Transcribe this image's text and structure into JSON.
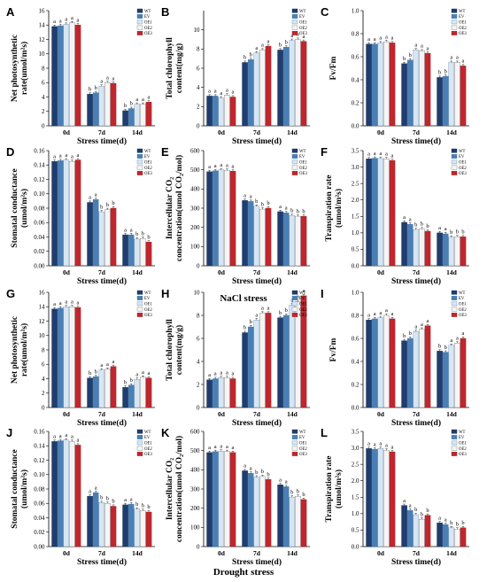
{
  "legend": [
    "WT",
    "EV",
    "OE1",
    "OE2",
    "OE3"
  ],
  "colors": [
    "#1f3d6e",
    "#4a7fb5",
    "#d7e6f2",
    "#f5f5f5",
    "#c0262d"
  ],
  "categories": [
    "0d",
    "7d",
    "14d"
  ],
  "xlabel": "Stress time(d)",
  "section_captions": [
    "NaCl stress",
    "Drought stress"
  ],
  "chart_data": [
    {
      "type": "bar",
      "letter": "A",
      "ylabel": "Net photosynthetic\nrate(umol/m²s)",
      "ylim": [
        0,
        16
      ],
      "ticks": [
        0,
        2,
        4,
        6,
        8,
        10,
        12,
        14,
        16
      ],
      "categories": [
        "0d",
        "7d",
        "14d"
      ],
      "series": [
        {
          "name": "WT",
          "values": [
            13.8,
            4.4,
            2.1
          ]
        },
        {
          "name": "EV",
          "values": [
            13.9,
            4.6,
            2.4
          ]
        },
        {
          "name": "OE1",
          "values": [
            14.1,
            5.5,
            3.0
          ]
        },
        {
          "name": "OE2",
          "values": [
            14.3,
            6.0,
            3.0
          ]
        },
        {
          "name": "OE3",
          "values": [
            14.0,
            5.9,
            3.3
          ]
        }
      ],
      "sig": [
        [
          "a",
          "a",
          "a",
          "a",
          "a"
        ],
        [
          "b",
          "b",
          "a",
          "a",
          "a"
        ],
        [
          "b",
          "b",
          "a",
          "a",
          "a"
        ]
      ]
    },
    {
      "type": "bar",
      "letter": "B",
      "ylabel": "Total chlorophyll\ncontent(mg/g)",
      "ylim": [
        0,
        12
      ],
      "ticks": [
        0,
        2,
        4,
        6,
        8,
        10
      ],
      "categories": [
        "0d",
        "7d",
        "14d"
      ],
      "series": [
        {
          "name": "WT",
          "values": [
            3.1,
            6.6,
            7.9
          ]
        },
        {
          "name": "EV",
          "values": [
            3.1,
            6.9,
            8.2
          ]
        },
        {
          "name": "OE1",
          "values": [
            2.9,
            7.6,
            8.9
          ]
        },
        {
          "name": "OE2",
          "values": [
            3.2,
            7.9,
            9.0
          ]
        },
        {
          "name": "OE3",
          "values": [
            3.0,
            8.3,
            8.8
          ]
        }
      ],
      "sig": [
        [
          "a",
          "a",
          "a",
          "a",
          "a"
        ],
        [
          "b",
          "b",
          "a",
          "a",
          "a"
        ],
        [
          "b",
          "b",
          "a",
          "a",
          "a"
        ]
      ]
    },
    {
      "type": "bar",
      "letter": "C",
      "ylabel": "Fv/Fm",
      "ylim": [
        0,
        1.0
      ],
      "ticks": [
        0.0,
        0.2,
        0.4,
        0.6,
        0.8,
        1.0
      ],
      "categories": [
        "0d",
        "7d",
        "14d"
      ],
      "series": [
        {
          "name": "WT",
          "values": [
            0.71,
            0.54,
            0.42
          ]
        },
        {
          "name": "EV",
          "values": [
            0.71,
            0.57,
            0.43
          ]
        },
        {
          "name": "OE1",
          "values": [
            0.72,
            0.66,
            0.55
          ]
        },
        {
          "name": "OE2",
          "values": [
            0.73,
            0.65,
            0.55
          ]
        },
        {
          "name": "OE3",
          "values": [
            0.72,
            0.63,
            0.52
          ]
        }
      ],
      "sig": [
        [
          "a",
          "a",
          "a",
          "a",
          "a"
        ],
        [
          "b",
          "b",
          "a",
          "a",
          "a"
        ],
        [
          "b",
          "b",
          "a",
          "a",
          "a"
        ]
      ]
    },
    {
      "type": "bar",
      "letter": "D",
      "ylabel": "Stomatal conductance\n(umol/m²s)",
      "ylim": [
        0,
        0.16
      ],
      "ticks": [
        0.0,
        0.02,
        0.04,
        0.06,
        0.08,
        0.1,
        0.12,
        0.14,
        0.16
      ],
      "categories": [
        "0d",
        "7d",
        "14d"
      ],
      "series": [
        {
          "name": "WT",
          "values": [
            0.145,
            0.088,
            0.043
          ]
        },
        {
          "name": "EV",
          "values": [
            0.146,
            0.092,
            0.043
          ]
        },
        {
          "name": "OE1",
          "values": [
            0.147,
            0.075,
            0.037
          ]
        },
        {
          "name": "OE2",
          "values": [
            0.145,
            0.078,
            0.038
          ]
        },
        {
          "name": "OE3",
          "values": [
            0.147,
            0.08,
            0.033
          ]
        }
      ],
      "sig": [
        [
          "a",
          "a",
          "a",
          "a",
          "a"
        ],
        [
          "a",
          "a",
          "b",
          "b",
          "b"
        ],
        [
          "a",
          "a",
          "b",
          "b",
          "b"
        ]
      ]
    },
    {
      "type": "bar",
      "letter": "E",
      "ylabel": "Intercellular CO₂\nconcentration(umol CO₂/mol)",
      "ylim": [
        0,
        600
      ],
      "ticks": [
        0,
        100,
        200,
        300,
        400,
        500,
        600
      ],
      "categories": [
        "0d",
        "7d",
        "14d"
      ],
      "series": [
        {
          "name": "WT",
          "values": [
            490,
            340,
            282
          ]
        },
        {
          "name": "EV",
          "values": [
            495,
            335,
            276
          ]
        },
        {
          "name": "OE1",
          "values": [
            500,
            310,
            262
          ]
        },
        {
          "name": "OE2",
          "values": [
            497,
            295,
            258
          ]
        },
        {
          "name": "OE3",
          "values": [
            493,
            300,
            258
          ]
        }
      ],
      "sig": [
        [
          "a",
          "a",
          "a",
          "a",
          "a"
        ],
        [
          "a",
          "a",
          "b",
          "b",
          "b"
        ],
        [
          "a",
          "a",
          "b",
          "b",
          "b"
        ]
      ]
    },
    {
      "type": "bar",
      "letter": "F",
      "ylabel": "Transpiration rate\n(umol/m²s)",
      "ylim": [
        0,
        3.5
      ],
      "ticks": [
        0.0,
        0.5,
        1.0,
        1.5,
        2.0,
        2.5,
        3.0,
        3.5
      ],
      "categories": [
        "0d",
        "7d",
        "14d"
      ],
      "series": [
        {
          "name": "WT",
          "values": [
            3.25,
            1.32,
            1.0
          ]
        },
        {
          "name": "EV",
          "values": [
            3.27,
            1.26,
            0.97
          ]
        },
        {
          "name": "OE1",
          "values": [
            3.26,
            1.1,
            0.87
          ]
        },
        {
          "name": "OE2",
          "values": [
            3.25,
            1.12,
            0.88
          ]
        },
        {
          "name": "OE3",
          "values": [
            3.2,
            1.05,
            0.88
          ]
        }
      ],
      "sig": [
        [
          "a",
          "a",
          "a",
          "a",
          "a"
        ],
        [
          "a",
          "a",
          "b",
          "b",
          "b"
        ],
        [
          "a",
          "a",
          "b",
          "b",
          "b"
        ]
      ]
    },
    {
      "type": "bar",
      "letter": "G",
      "ylabel": "Net photosynthetic\nrate(umol/m²s)",
      "ylim": [
        0,
        16
      ],
      "ticks": [
        0,
        2,
        4,
        6,
        8,
        10,
        12,
        14,
        16
      ],
      "categories": [
        "0d",
        "7d",
        "14d"
      ],
      "series": [
        {
          "name": "WT",
          "values": [
            13.7,
            4.1,
            2.8
          ]
        },
        {
          "name": "EV",
          "values": [
            13.8,
            4.3,
            3.1
          ]
        },
        {
          "name": "OE1",
          "values": [
            14.0,
            5.2,
            3.9
          ]
        },
        {
          "name": "OE2",
          "values": [
            14.0,
            5.3,
            4.2
          ]
        },
        {
          "name": "OE3",
          "values": [
            13.9,
            5.7,
            4.1
          ]
        }
      ],
      "sig": [
        [
          "a",
          "a",
          "a",
          "a",
          "a"
        ],
        [
          "b",
          "b",
          "a",
          "a",
          "a"
        ],
        [
          "b",
          "b",
          "a",
          "a",
          "a"
        ]
      ]
    },
    {
      "type": "bar",
      "letter": "H",
      "ylabel": "Total chlorophyll\ncontent(mg/g)",
      "ylim": [
        0,
        10
      ],
      "ticks": [
        0,
        2,
        4,
        6,
        8,
        10
      ],
      "categories": [
        "0d",
        "7d",
        "14d"
      ],
      "series": [
        {
          "name": "WT",
          "values": [
            2.4,
            6.5,
            7.8
          ]
        },
        {
          "name": "EV",
          "values": [
            2.5,
            7.0,
            8.0
          ]
        },
        {
          "name": "OE1",
          "values": [
            2.6,
            7.6,
            8.9
          ]
        },
        {
          "name": "OE2",
          "values": [
            2.6,
            8.2,
            9.2
          ]
        },
        {
          "name": "OE3",
          "values": [
            2.5,
            8.2,
            9.7
          ]
        }
      ],
      "sig": [
        [
          "a",
          "a",
          "a",
          "a",
          "a"
        ],
        [
          "b",
          "b",
          "a",
          "a",
          "a"
        ],
        [
          "b",
          "b",
          "a",
          "a",
          "a"
        ]
      ]
    },
    {
      "type": "bar",
      "letter": "I",
      "ylabel": "Fv/Fm",
      "ylim": [
        0,
        1.0
      ],
      "ticks": [
        0.0,
        0.2,
        0.4,
        0.6,
        0.8,
        1.0
      ],
      "categories": [
        "0d",
        "7d",
        "14d"
      ],
      "series": [
        {
          "name": "WT",
          "values": [
            0.76,
            0.58,
            0.49
          ]
        },
        {
          "name": "EV",
          "values": [
            0.77,
            0.6,
            0.48
          ]
        },
        {
          "name": "OE1",
          "values": [
            0.78,
            0.66,
            0.54
          ]
        },
        {
          "name": "OE2",
          "values": [
            0.8,
            0.68,
            0.56
          ]
        },
        {
          "name": "OE3",
          "values": [
            0.77,
            0.71,
            0.6
          ]
        }
      ],
      "sig": [
        [
          "a",
          "a",
          "a",
          "a",
          "a"
        ],
        [
          "b",
          "b",
          "a",
          "a",
          "a"
        ],
        [
          "b",
          "b",
          "a",
          "a",
          "a"
        ]
      ]
    },
    {
      "type": "bar",
      "letter": "J",
      "ylabel": "Stomatal conductance\n(umol/m²s)",
      "ylim": [
        0,
        0.16
      ],
      "ticks": [
        0.0,
        0.02,
        0.04,
        0.06,
        0.08,
        0.1,
        0.12,
        0.14,
        0.16
      ],
      "categories": [
        "0d",
        "7d",
        "14d"
      ],
      "series": [
        {
          "name": "WT",
          "values": [
            0.146,
            0.07,
            0.058
          ]
        },
        {
          "name": "EV",
          "values": [
            0.147,
            0.075,
            0.059
          ]
        },
        {
          "name": "OE1",
          "values": [
            0.148,
            0.061,
            0.052
          ]
        },
        {
          "name": "OE2",
          "values": [
            0.146,
            0.06,
            0.05
          ]
        },
        {
          "name": "OE3",
          "values": [
            0.141,
            0.056,
            0.048
          ]
        }
      ],
      "sig": [
        [
          "a",
          "a",
          "a",
          "a",
          "a"
        ],
        [
          "a",
          "a",
          "b",
          "b",
          "b"
        ],
        [
          "a",
          "a",
          "b",
          "b",
          "b"
        ]
      ]
    },
    {
      "type": "bar",
      "letter": "K",
      "ylabel": "Intercellular CO₂\nconcentration(umol CO₂/mol)",
      "ylim": [
        0,
        600
      ],
      "ticks": [
        0,
        100,
        200,
        300,
        400,
        500,
        600
      ],
      "categories": [
        "0d",
        "7d",
        "14d"
      ],
      "series": [
        {
          "name": "WT",
          "values": [
            490,
            395,
            322
          ]
        },
        {
          "name": "EV",
          "values": [
            495,
            382,
            312
          ]
        },
        {
          "name": "OE1",
          "values": [
            497,
            362,
            258
          ]
        },
        {
          "name": "OE2",
          "values": [
            495,
            365,
            262
          ]
        },
        {
          "name": "OE3",
          "values": [
            490,
            350,
            245
          ]
        }
      ],
      "sig": [
        [
          "a",
          "a",
          "a",
          "a",
          "a"
        ],
        [
          "a",
          "a",
          "b",
          "b",
          "b"
        ],
        [
          "a",
          "a",
          "b",
          "b",
          "b"
        ]
      ]
    },
    {
      "type": "bar",
      "letter": "L",
      "ylabel": "Transpiration rate\n(umol/m²s)",
      "ylim": [
        0,
        3.5
      ],
      "ticks": [
        0.0,
        0.5,
        1.0,
        1.5,
        2.0,
        2.5,
        3.0,
        3.5
      ],
      "categories": [
        "0d",
        "7d",
        "14d"
      ],
      "series": [
        {
          "name": "WT",
          "values": [
            2.98,
            1.25,
            0.72
          ]
        },
        {
          "name": "EV",
          "values": [
            2.96,
            1.1,
            0.67
          ]
        },
        {
          "name": "OE1",
          "values": [
            2.98,
            0.97,
            0.57
          ]
        },
        {
          "name": "OE2",
          "values": [
            2.93,
            0.83,
            0.53
          ]
        },
        {
          "name": "OE3",
          "values": [
            2.88,
            0.95,
            0.57
          ]
        }
      ],
      "sig": [
        [
          "a",
          "a",
          "a",
          "a",
          "a"
        ],
        [
          "a",
          "a",
          "b",
          "b",
          "b"
        ],
        [
          "a",
          "a",
          "b",
          "b",
          "b"
        ]
      ]
    }
  ]
}
